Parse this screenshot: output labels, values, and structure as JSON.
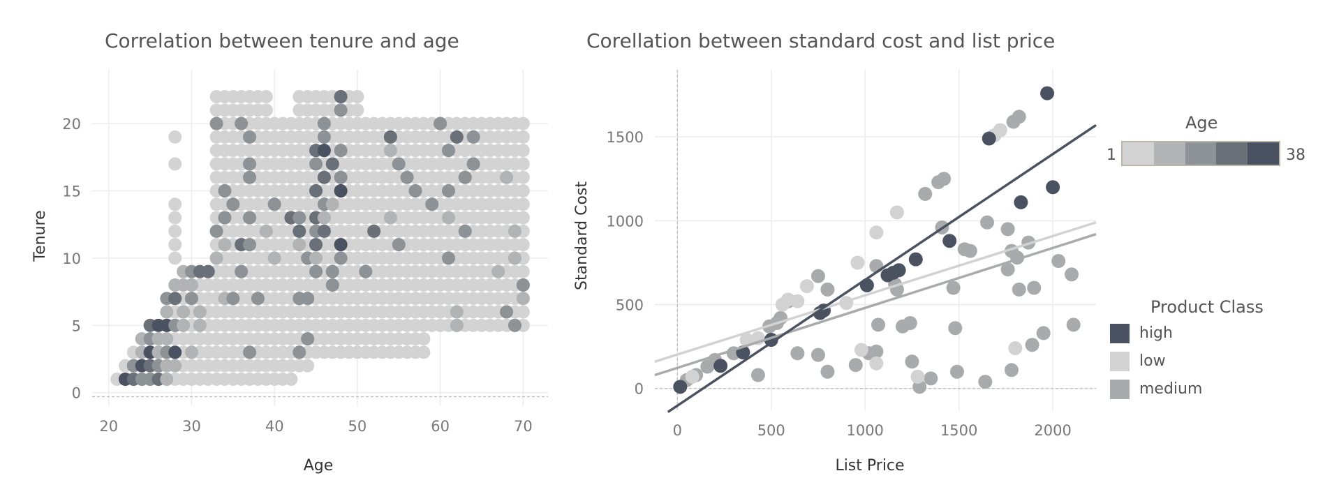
{
  "chart_data": [
    {
      "type": "scatter",
      "title": "Correlation between tenure and age",
      "xlabel": "Age",
      "ylabel": "Tenure",
      "xlim": [
        18,
        73
      ],
      "ylim": [
        -1,
        24
      ],
      "xticks": [
        "20",
        "30",
        "40",
        "50",
        "60",
        "70"
      ],
      "yticks": [
        "0",
        "5",
        "10",
        "15",
        "20"
      ],
      "grid": true,
      "color_legend": "Age (1–38)",
      "points_note": "dense grid of points; darker = higher count",
      "points": [
        [
          21,
          1,
          1
        ],
        [
          22,
          1,
          5
        ],
        [
          23,
          1,
          4
        ],
        [
          24,
          1,
          3
        ],
        [
          25,
          1,
          3
        ],
        [
          26,
          1,
          4
        ],
        [
          27,
          1,
          2
        ],
        [
          28,
          1,
          1
        ],
        [
          29,
          1,
          1
        ],
        [
          22,
          2,
          1
        ],
        [
          23,
          2,
          3
        ],
        [
          24,
          2,
          5
        ],
        [
          25,
          2,
          4
        ],
        [
          26,
          2,
          3
        ],
        [
          27,
          2,
          2
        ],
        [
          28,
          2,
          2
        ],
        [
          29,
          2,
          1
        ],
        [
          23,
          3,
          1
        ],
        [
          24,
          3,
          2
        ],
        [
          25,
          3,
          5
        ],
        [
          26,
          3,
          2
        ],
        [
          27,
          3,
          3
        ],
        [
          28,
          3,
          5
        ],
        [
          30,
          3,
          2
        ],
        [
          33,
          3,
          1
        ],
        [
          37,
          3,
          3
        ],
        [
          43,
          3,
          3
        ],
        [
          50,
          3,
          1
        ],
        [
          24,
          4,
          2
        ],
        [
          25,
          4,
          3
        ],
        [
          26,
          4,
          2
        ],
        [
          27,
          4,
          2
        ],
        [
          28,
          4,
          1
        ],
        [
          30,
          4,
          1
        ],
        [
          44,
          4,
          3
        ],
        [
          25,
          5,
          4
        ],
        [
          26,
          5,
          5
        ],
        [
          27,
          5,
          5
        ],
        [
          28,
          5,
          3
        ],
        [
          29,
          5,
          2
        ],
        [
          31,
          5,
          2
        ],
        [
          40,
          5,
          1
        ],
        [
          53,
          5,
          1
        ],
        [
          62,
          5,
          2
        ],
        [
          69,
          5,
          3
        ],
        [
          26,
          6,
          1
        ],
        [
          27,
          6,
          2
        ],
        [
          28,
          6,
          1
        ],
        [
          29,
          6,
          2
        ],
        [
          31,
          6,
          2
        ],
        [
          62,
          6,
          2
        ],
        [
          68,
          6,
          3
        ],
        [
          27,
          7,
          3
        ],
        [
          28,
          7,
          4
        ],
        [
          30,
          7,
          3
        ],
        [
          34,
          7,
          2
        ],
        [
          35,
          7,
          3
        ],
        [
          38,
          7,
          3
        ],
        [
          43,
          7,
          3
        ],
        [
          44,
          7,
          3
        ],
        [
          70,
          7,
          2
        ],
        [
          28,
          8,
          2
        ],
        [
          29,
          8,
          2
        ],
        [
          30,
          8,
          2
        ],
        [
          31,
          8,
          1
        ],
        [
          47,
          8,
          3
        ],
        [
          70,
          8,
          3
        ],
        [
          29,
          9,
          2
        ],
        [
          30,
          9,
          3
        ],
        [
          31,
          9,
          4
        ],
        [
          32,
          9,
          4
        ],
        [
          36,
          9,
          3
        ],
        [
          45,
          9,
          3
        ],
        [
          47,
          9,
          3
        ],
        [
          51,
          9,
          3
        ],
        [
          67,
          9,
          2
        ],
        [
          33,
          10,
          2
        ],
        [
          40,
          10,
          2
        ],
        [
          44,
          10,
          3
        ],
        [
          45,
          10,
          2
        ],
        [
          48,
          10,
          3
        ],
        [
          61,
          10,
          3
        ],
        [
          69,
          10,
          2
        ],
        [
          34,
          11,
          2
        ],
        [
          36,
          11,
          4
        ],
        [
          37,
          11,
          3
        ],
        [
          43,
          11,
          2
        ],
        [
          45,
          11,
          4
        ],
        [
          48,
          11,
          5
        ],
        [
          55,
          11,
          3
        ],
        [
          33,
          12,
          3
        ],
        [
          39,
          12,
          2
        ],
        [
          43,
          12,
          4
        ],
        [
          45,
          12,
          3
        ],
        [
          46,
          12,
          4
        ],
        [
          52,
          12,
          4
        ],
        [
          63,
          12,
          3
        ],
        [
          69,
          12,
          2
        ],
        [
          34,
          13,
          3
        ],
        [
          37,
          13,
          3
        ],
        [
          42,
          13,
          4
        ],
        [
          43,
          13,
          3
        ],
        [
          45,
          13,
          4
        ],
        [
          46,
          13,
          2
        ],
        [
          54,
          13,
          2
        ],
        [
          61,
          13,
          2
        ],
        [
          28,
          14,
          1
        ],
        [
          35,
          14,
          3
        ],
        [
          40,
          14,
          3
        ],
        [
          46,
          14,
          3
        ],
        [
          47,
          14,
          2
        ],
        [
          59,
          14,
          3
        ],
        [
          34,
          15,
          3
        ],
        [
          45,
          15,
          4
        ],
        [
          48,
          15,
          5
        ],
        [
          57,
          15,
          3
        ],
        [
          61,
          15,
          3
        ],
        [
          37,
          16,
          3
        ],
        [
          46,
          16,
          4
        ],
        [
          48,
          16,
          3
        ],
        [
          56,
          16,
          3
        ],
        [
          63,
          16,
          3
        ],
        [
          68,
          16,
          2
        ],
        [
          37,
          17,
          3
        ],
        [
          45,
          17,
          3
        ],
        [
          47,
          17,
          4
        ],
        [
          55,
          17,
          3
        ],
        [
          64,
          17,
          3
        ],
        [
          45,
          18,
          4
        ],
        [
          46,
          18,
          5
        ],
        [
          48,
          18,
          3
        ],
        [
          54,
          18,
          2
        ],
        [
          61,
          18,
          3
        ],
        [
          37,
          19,
          3
        ],
        [
          46,
          19,
          3
        ],
        [
          54,
          19,
          4
        ],
        [
          62,
          19,
          4
        ],
        [
          64,
          19,
          3
        ],
        [
          33,
          20,
          3
        ],
        [
          36,
          20,
          3
        ],
        [
          46,
          20,
          3
        ],
        [
          60,
          20,
          3
        ],
        [
          34,
          21,
          1
        ],
        [
          44,
          21,
          1
        ],
        [
          48,
          21,
          3
        ],
        [
          48,
          22,
          4
        ]
      ]
    },
    {
      "type": "scatter",
      "title": "Corellation between standard cost and list price",
      "xlabel": "List Price",
      "ylabel": "Standard Cost",
      "xlim": [
        -120,
        2230
      ],
      "ylim": [
        -130,
        1900
      ],
      "xticks": [
        "0",
        "500",
        "1000",
        "1500",
        "2000"
      ],
      "yticks": [
        "0",
        "500",
        "1000",
        "1500"
      ],
      "grid": true,
      "series": [
        {
          "name": "high",
          "color": "#4a5160",
          "points": [
            [
              15,
              10
            ],
            [
              230,
              135
            ],
            [
              350,
              215
            ],
            [
              500,
              290
            ],
            [
              760,
              450
            ],
            [
              780,
              465
            ],
            [
              1010,
              615
            ],
            [
              1120,
              675
            ],
            [
              1150,
              690
            ],
            [
              1180,
              705
            ],
            [
              1270,
              770
            ],
            [
              1450,
              880
            ],
            [
              1660,
              1490
            ],
            [
              1830,
              1110
            ],
            [
              1970,
              1760
            ],
            [
              2000,
              1200
            ]
          ],
          "trend": [
            [
              -50,
              -140
            ],
            [
              2230,
              1570
            ]
          ]
        },
        {
          "name": "low",
          "color": "#d2d2d2",
          "points": [
            [
              80,
              70
            ],
            [
              370,
              290
            ],
            [
              430,
              300
            ],
            [
              560,
              500
            ],
            [
              590,
              530
            ],
            [
              640,
              520
            ],
            [
              690,
              610
            ],
            [
              900,
              510
            ],
            [
              960,
              750
            ],
            [
              980,
              230
            ],
            [
              1060,
              150
            ],
            [
              1060,
              930
            ],
            [
              1170,
              1050
            ],
            [
              1280,
              70
            ],
            [
              1690,
              1510
            ],
            [
              1720,
              1540
            ],
            [
              1800,
              240
            ]
          ],
          "trend": [
            [
              -120,
              160
            ],
            [
              2230,
              990
            ]
          ]
        },
        {
          "name": "medium",
          "color": "#a8aaac",
          "points": [
            [
              50,
              50
            ],
            [
              100,
              80
            ],
            [
              160,
              130
            ],
            [
              200,
              170
            ],
            [
              300,
              210
            ],
            [
              430,
              80
            ],
            [
              490,
              370
            ],
            [
              530,
              390
            ],
            [
              550,
              420
            ],
            [
              590,
              520
            ],
            [
              640,
              210
            ],
            [
              750,
              670
            ],
            [
              750,
              200
            ],
            [
              800,
              590
            ],
            [
              800,
              100
            ],
            [
              950,
              140
            ],
            [
              1020,
              210
            ],
            [
              1060,
              220
            ],
            [
              1060,
              730
            ],
            [
              1070,
              380
            ],
            [
              1160,
              620
            ],
            [
              1170,
              590
            ],
            [
              1200,
              370
            ],
            [
              1240,
              390
            ],
            [
              1250,
              160
            ],
            [
              1290,
              10
            ],
            [
              1320,
              1160
            ],
            [
              1350,
              60
            ],
            [
              1390,
              1230
            ],
            [
              1420,
              1250
            ],
            [
              1410,
              960
            ],
            [
              1470,
              600
            ],
            [
              1480,
              360
            ],
            [
              1490,
              100
            ],
            [
              1530,
              830
            ],
            [
              1560,
              820
            ],
            [
              1640,
              40
            ],
            [
              1650,
              990
            ],
            [
              1760,
              950
            ],
            [
              1760,
              710
            ],
            [
              1780,
              820
            ],
            [
              1780,
              110
            ],
            [
              1790,
              1590
            ],
            [
              1810,
              780
            ],
            [
              1820,
              590
            ],
            [
              1820,
              1620
            ],
            [
              1870,
              870
            ],
            [
              1890,
              260
            ],
            [
              1900,
              600
            ],
            [
              1950,
              330
            ],
            [
              2030,
              760
            ],
            [
              2100,
              680
            ],
            [
              2110,
              380
            ]
          ],
          "trend": [
            [
              -120,
              80
            ],
            [
              2230,
              920
            ]
          ]
        }
      ]
    }
  ],
  "legends": {
    "age": {
      "title": "Age",
      "min": "1",
      "max": "38",
      "colors": [
        "#d3d3d3",
        "#b1b3b5",
        "#8d9297",
        "#6a7078",
        "#4a5160"
      ]
    },
    "product_class": {
      "title": "Product Class",
      "items": [
        {
          "label": "high",
          "color": "#4a5160"
        },
        {
          "label": "low",
          "color": "#d2d2d2"
        },
        {
          "label": "medium",
          "color": "#a8aaac"
        }
      ]
    }
  }
}
